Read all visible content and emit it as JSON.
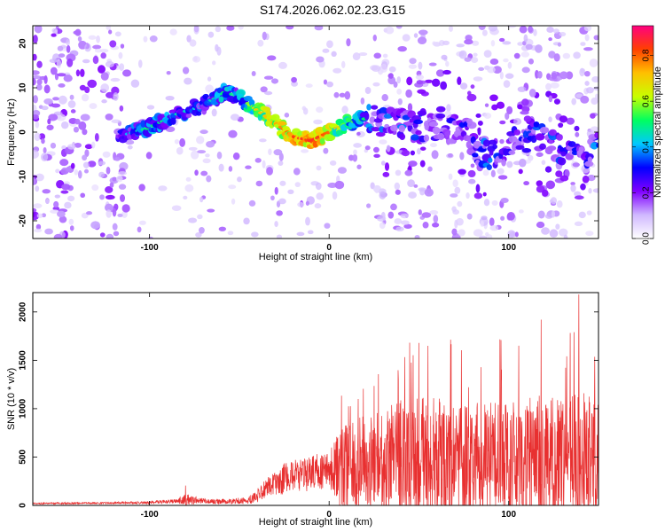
{
  "title": "S174.2026.062.02.23.G15",
  "colors": {
    "line": "#e83030",
    "axis": "#000000",
    "scatter_low": "#d9c8ff",
    "scatter_mid": "#6a00ff",
    "scatter_high": "#ff0040"
  },
  "chart_data": [
    {
      "type": "heatmap",
      "title": "S174.2026.062.02.23.G15",
      "xlabel": "Height of straight line (km)",
      "ylabel": "Frequency (Hz)",
      "xlim": [
        -165,
        150
      ],
      "ylim": [
        -24,
        24
      ],
      "xticks": [
        -100,
        0,
        100
      ],
      "yticks": [
        -20,
        -10,
        0,
        10,
        20
      ],
      "xtick_labels": [
        "-100",
        "0",
        "100"
      ],
      "ytick_labels": [
        "-20",
        "-10",
        "0",
        "10",
        "20"
      ],
      "colorbar": {
        "label": "Normalized spectral amplitude",
        "range": [
          0.0,
          0.93
        ],
        "ticks": [
          0.0,
          0.2,
          0.4,
          0.6,
          0.8
        ],
        "tick_labels": [
          "0.0",
          "0.2",
          "0.4",
          "0.6",
          "0.8"
        ],
        "colormap": [
          "#ffffff",
          "#d0b8ff",
          "#8000ff",
          "#0000ff",
          "#00c8ff",
          "#00ff60",
          "#c8ff00",
          "#ffc000",
          "#ff4000",
          "#ff0080"
        ]
      },
      "ridge": {
        "x": [
          -117,
          -100,
          -85,
          -70,
          -58,
          -50,
          -40,
          -30,
          -20,
          -10,
          0,
          10,
          20
        ],
        "y": [
          -1,
          1,
          4,
          6,
          9,
          8,
          5,
          2,
          -1,
          -2,
          0,
          2,
          3
        ],
        "amplitude": [
          0.35,
          0.5,
          0.45,
          0.4,
          0.5,
          0.45,
          0.7,
          0.75,
          0.85,
          0.9,
          0.8,
          0.6,
          0.5
        ]
      }
    },
    {
      "type": "line",
      "xlabel": "Height of straight line (km)",
      "ylabel": "SNR (10 * v/v)",
      "xlim": [
        -165,
        150
      ],
      "ylim": [
        0,
        2200
      ],
      "xticks": [
        -100,
        0,
        100
      ],
      "yticks": [
        0,
        500,
        1000,
        1500,
        2000
      ],
      "xtick_labels": [
        "-100",
        "0",
        "100"
      ],
      "ytick_labels": [
        "0",
        "500",
        "1000",
        "1500",
        "2000"
      ],
      "envelope": {
        "x": [
          -165,
          -120,
          -100,
          -85,
          -80,
          -70,
          -60,
          -45,
          -40,
          -35,
          -30,
          -25,
          -20,
          -15,
          -10,
          -5,
          0,
          5,
          10,
          20,
          30,
          40,
          50,
          60,
          70,
          80,
          90,
          100,
          110,
          120,
          130,
          140,
          150
        ],
        "baseline": [
          20,
          25,
          30,
          45,
          60,
          45,
          40,
          50,
          100,
          180,
          220,
          280,
          320,
          300,
          340,
          350,
          360,
          380,
          420,
          440,
          450,
          480,
          480,
          470,
          480,
          480,
          470,
          460,
          480,
          460,
          470,
          480,
          480
        ],
        "spread": [
          8,
          10,
          15,
          20,
          60,
          25,
          25,
          35,
          70,
          100,
          130,
          160,
          160,
          170,
          180,
          190,
          200,
          420,
          480,
          500,
          560,
          620,
          650,
          640,
          620,
          600,
          600,
          620,
          650,
          680,
          650,
          700,
          600
        ]
      },
      "peaks": [
        {
          "x": -80,
          "y": 205
        },
        {
          "x": 50,
          "y": 1680
        },
        {
          "x": 55,
          "y": 1650
        },
        {
          "x": 118,
          "y": 1920
        },
        {
          "x": 139,
          "y": 2180
        }
      ]
    }
  ]
}
